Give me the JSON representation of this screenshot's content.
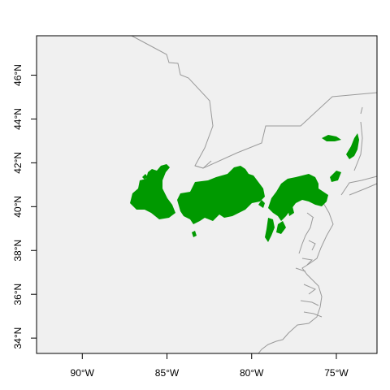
{
  "map": {
    "x_ticks": [
      "90°W",
      "85°W",
      "80°W",
      "75°W"
    ],
    "y_ticks": [
      "34°N",
      "36°N",
      "38°N",
      "40°N",
      "42°N",
      "44°N",
      "46°N"
    ],
    "colors": {
      "plot_background": "#f0f0f0",
      "boundary": "#9a9a9a",
      "range": "#009900",
      "frame": "#000000"
    }
  },
  "chart_data": {
    "type": "map",
    "x_tick_values": [
      -90,
      -85,
      -80,
      -75
    ],
    "y_tick_values": [
      34,
      36,
      38,
      40,
      42,
      44,
      46
    ],
    "xlim": [
      -92.7,
      -72.6
    ],
    "ylim": [
      33.3,
      47.8
    ],
    "legend": "none",
    "grid": false
  }
}
